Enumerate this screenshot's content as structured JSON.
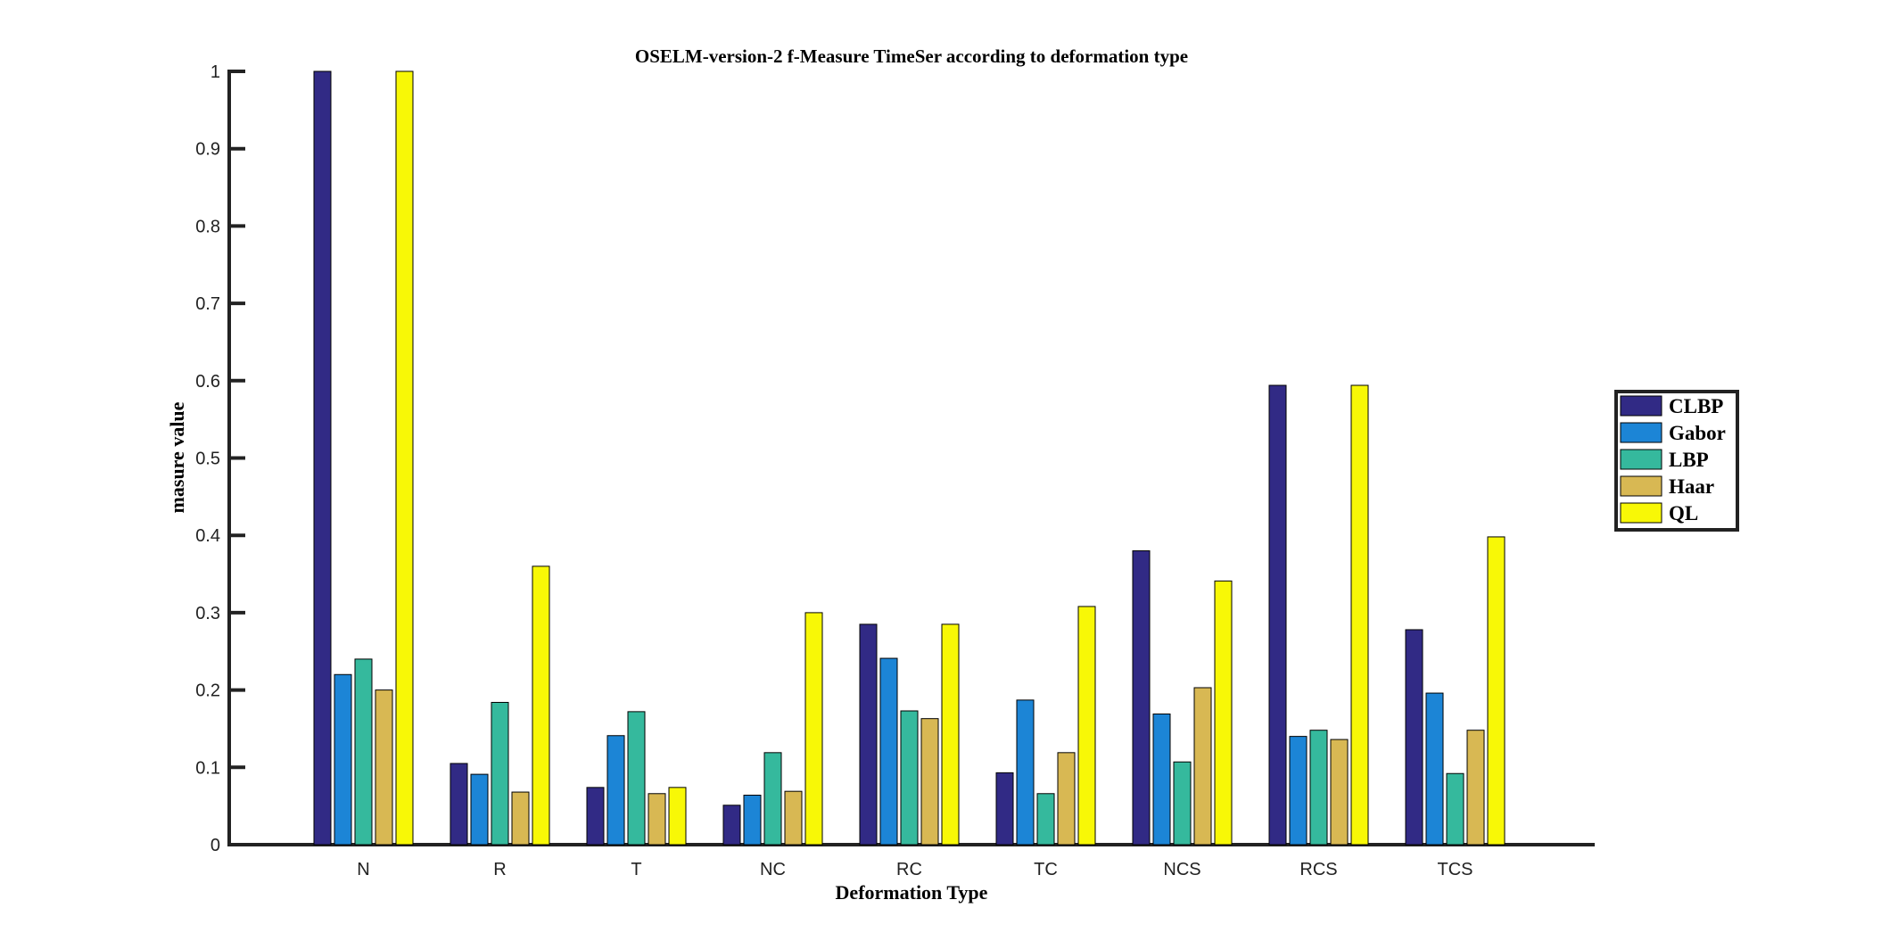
{
  "chart_data": {
    "type": "bar",
    "title": "OSELM-version-2 f-Measure TimeSer according to deformation type",
    "xlabel": "Deformation Type",
    "ylabel": "masure value",
    "ylim": [
      0,
      1
    ],
    "yticks": [
      0,
      0.1,
      0.2,
      0.3,
      0.4,
      0.5,
      0.6,
      0.7,
      0.8,
      0.9,
      1
    ],
    "ytick_labels": [
      "0",
      "0.1",
      "0.2",
      "0.3",
      "0.4",
      "0.5",
      "0.6",
      "0.7",
      "0.8",
      "0.9",
      "1"
    ],
    "categories": [
      "N",
      "R",
      "T",
      "NC",
      "RC",
      "TC",
      "NCS",
      "RCS",
      "TCS"
    ],
    "legend_position": "right",
    "grid": false,
    "series": [
      {
        "name": "CLBP",
        "color": "#312a85",
        "values": [
          1.0,
          0.105,
          0.074,
          0.051,
          0.285,
          0.093,
          0.38,
          0.594,
          0.278
        ]
      },
      {
        "name": "Gabor",
        "color": "#1c85d6",
        "values": [
          0.22,
          0.091,
          0.141,
          0.064,
          0.241,
          0.187,
          0.169,
          0.14,
          0.196
        ]
      },
      {
        "name": "LBP",
        "color": "#35b99d",
        "values": [
          0.24,
          0.184,
          0.172,
          0.119,
          0.173,
          0.066,
          0.107,
          0.148,
          0.092
        ]
      },
      {
        "name": "Haar",
        "color": "#d8b853",
        "values": [
          0.2,
          0.068,
          0.066,
          0.069,
          0.163,
          0.119,
          0.203,
          0.136,
          0.148
        ]
      },
      {
        "name": "QL",
        "color": "#f8f806",
        "values": [
          1.0,
          0.36,
          0.074,
          0.3,
          0.285,
          0.308,
          0.341,
          0.594,
          0.398
        ]
      }
    ]
  }
}
